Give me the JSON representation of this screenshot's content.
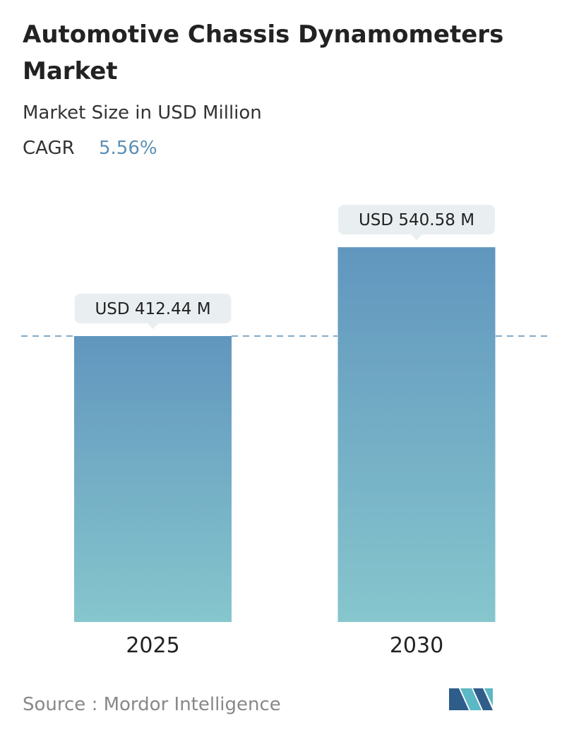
{
  "chart_data": {
    "type": "bar",
    "title_lines": [
      "Automotive Chassis Dynamometers",
      "Market"
    ],
    "subtitle": "Market Size in USD Million",
    "cagr_label": "CAGR",
    "cagr": "5.56%",
    "categories": [
      "2025",
      "2030"
    ],
    "values": [
      412.44,
      540.58
    ],
    "value_labels": [
      "USD 412.44 M",
      "USD 540.58 M"
    ],
    "gradient": [
      "#6196be",
      "#86c6cd"
    ],
    "reference_line_color": "#5b8fb5",
    "label_box_color": "#e9eff1",
    "source": "Source :  Mordor Intelligence"
  }
}
